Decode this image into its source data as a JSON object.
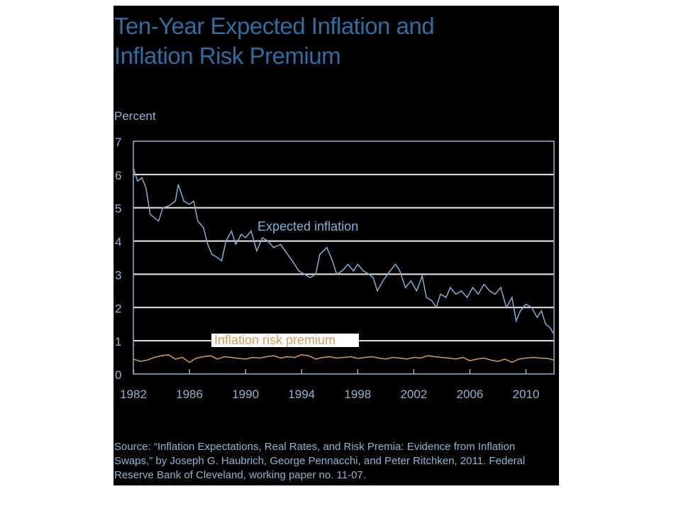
{
  "title_line1": "Ten-Year Expected Inflation and",
  "title_line2": "Inflation Risk Premium",
  "source": "Source: “Inflation Expectations, Real Rates, and Risk Premia: Evidence from Inflation Swaps,” by Joseph G. Haubrich, George Pennacchi, and Peter Ritchken, 2011. Federal Reserve Bank of Cleveland, working paper no. 11-07.",
  "colors": {
    "expected": "#7fb0d6",
    "premium": "#d99a5b",
    "title": "#2f6ea3",
    "axis": "#8fb3d3"
  },
  "chart_data": {
    "type": "line",
    "title": "Ten-Year Expected Inflation and Inflation Risk Premium",
    "ylabel": "Percent",
    "xlabel": "",
    "xlim": [
      1982,
      2012
    ],
    "ylim": [
      0,
      7
    ],
    "yticks": [
      "0",
      "1",
      "2",
      "3",
      "4",
      "5",
      "6",
      "7"
    ],
    "xticks": [
      {
        "value": 1982,
        "label": "1982"
      },
      {
        "value": 1986,
        "label": "1986"
      },
      {
        "value": 1990,
        "label": "1990"
      },
      {
        "value": 1994,
        "label": "1994"
      },
      {
        "value": 1998,
        "label": "1998"
      },
      {
        "value": 2002,
        "label": "2002"
      },
      {
        "value": 2006,
        "label": "2006"
      },
      {
        "value": 2010,
        "label": "2010"
      }
    ],
    "grid": "horizontal",
    "series": [
      {
        "name": "Expected inflation",
        "label": "Expected inflation",
        "x": [
          1982.0,
          1982.3,
          1982.6,
          1982.9,
          1983.2,
          1983.5,
          1983.8,
          1984.1,
          1984.5,
          1985.0,
          1985.2,
          1985.6,
          1986.0,
          1986.3,
          1986.6,
          1987.0,
          1987.3,
          1987.6,
          1988.0,
          1988.3,
          1988.6,
          1989.0,
          1989.3,
          1989.7,
          1990.0,
          1990.4,
          1990.8,
          1991.2,
          1991.6,
          1992.0,
          1992.5,
          1993.0,
          1993.5,
          1993.8,
          1994.2,
          1994.6,
          1995.0,
          1995.3,
          1995.8,
          1996.2,
          1996.5,
          1996.9,
          1997.3,
          1997.7,
          1998.0,
          1998.4,
          1998.8,
          1999.1,
          1999.4,
          1999.8,
          2000.3,
          2000.7,
          2001.0,
          2001.4,
          2001.8,
          2002.2,
          2002.6,
          2002.9,
          2003.3,
          2003.6,
          2003.9,
          2004.3,
          2004.6,
          2005.0,
          2005.4,
          2005.8,
          2006.2,
          2006.6,
          2007.0,
          2007.4,
          2007.8,
          2008.2,
          2008.6,
          2009.0,
          2009.3,
          2009.6,
          2010.0,
          2010.4,
          2010.8,
          2011.1,
          2011.4,
          2011.7,
          2012.0
        ],
        "y": [
          6.2,
          5.8,
          5.9,
          5.6,
          4.8,
          4.7,
          4.6,
          5.0,
          5.05,
          5.2,
          5.7,
          5.2,
          5.1,
          5.2,
          4.6,
          4.4,
          3.9,
          3.6,
          3.5,
          3.4,
          4.0,
          4.3,
          3.9,
          4.2,
          4.1,
          4.3,
          3.7,
          4.1,
          4.0,
          3.8,
          3.9,
          3.6,
          3.3,
          3.1,
          3.0,
          2.9,
          3.0,
          3.6,
          3.8,
          3.4,
          3.0,
          3.1,
          3.3,
          3.1,
          3.3,
          3.1,
          3.0,
          2.9,
          2.5,
          2.8,
          3.1,
          3.3,
          3.1,
          2.6,
          2.8,
          2.5,
          2.95,
          2.3,
          2.2,
          2.0,
          2.4,
          2.3,
          2.6,
          2.4,
          2.5,
          2.3,
          2.6,
          2.4,
          2.7,
          2.5,
          2.4,
          2.6,
          2.0,
          2.3,
          1.6,
          1.9,
          2.1,
          2.0,
          1.7,
          1.9,
          1.5,
          1.4,
          1.2
        ]
      },
      {
        "name": "Inflation risk premium",
        "label": "Inflation risk premium",
        "x": [
          1982.0,
          1982.5,
          1983.0,
          1983.5,
          1984.0,
          1984.5,
          1985.0,
          1985.5,
          1986.0,
          1986.5,
          1987.0,
          1987.5,
          1988.0,
          1988.5,
          1989.0,
          1989.5,
          1990.0,
          1990.5,
          1991.0,
          1991.5,
          1992.0,
          1992.5,
          1993.0,
          1993.5,
          1994.0,
          1994.5,
          1995.0,
          1995.5,
          1996.0,
          1996.5,
          1997.0,
          1997.5,
          1998.0,
          1998.5,
          1999.0,
          1999.5,
          2000.0,
          2000.5,
          2001.0,
          2001.5,
          2002.0,
          2002.5,
          2003.0,
          2003.5,
          2004.0,
          2004.5,
          2005.0,
          2005.5,
          2006.0,
          2006.5,
          2007.0,
          2007.5,
          2008.0,
          2008.5,
          2009.0,
          2009.5,
          2010.0,
          2010.5,
          2011.0,
          2011.5,
          2012.0
        ],
        "y": [
          0.45,
          0.38,
          0.42,
          0.5,
          0.55,
          0.58,
          0.45,
          0.5,
          0.35,
          0.48,
          0.52,
          0.55,
          0.45,
          0.52,
          0.5,
          0.47,
          0.45,
          0.5,
          0.48,
          0.52,
          0.55,
          0.48,
          0.52,
          0.5,
          0.58,
          0.55,
          0.45,
          0.5,
          0.52,
          0.48,
          0.5,
          0.52,
          0.47,
          0.5,
          0.52,
          0.48,
          0.45,
          0.5,
          0.48,
          0.45,
          0.5,
          0.48,
          0.55,
          0.52,
          0.5,
          0.48,
          0.45,
          0.5,
          0.4,
          0.45,
          0.48,
          0.42,
          0.38,
          0.45,
          0.35,
          0.45,
          0.48,
          0.5,
          0.48,
          0.47,
          0.42
        ]
      }
    ],
    "annotations": [
      "Expected inflation",
      "Inflation risk premium"
    ]
  }
}
